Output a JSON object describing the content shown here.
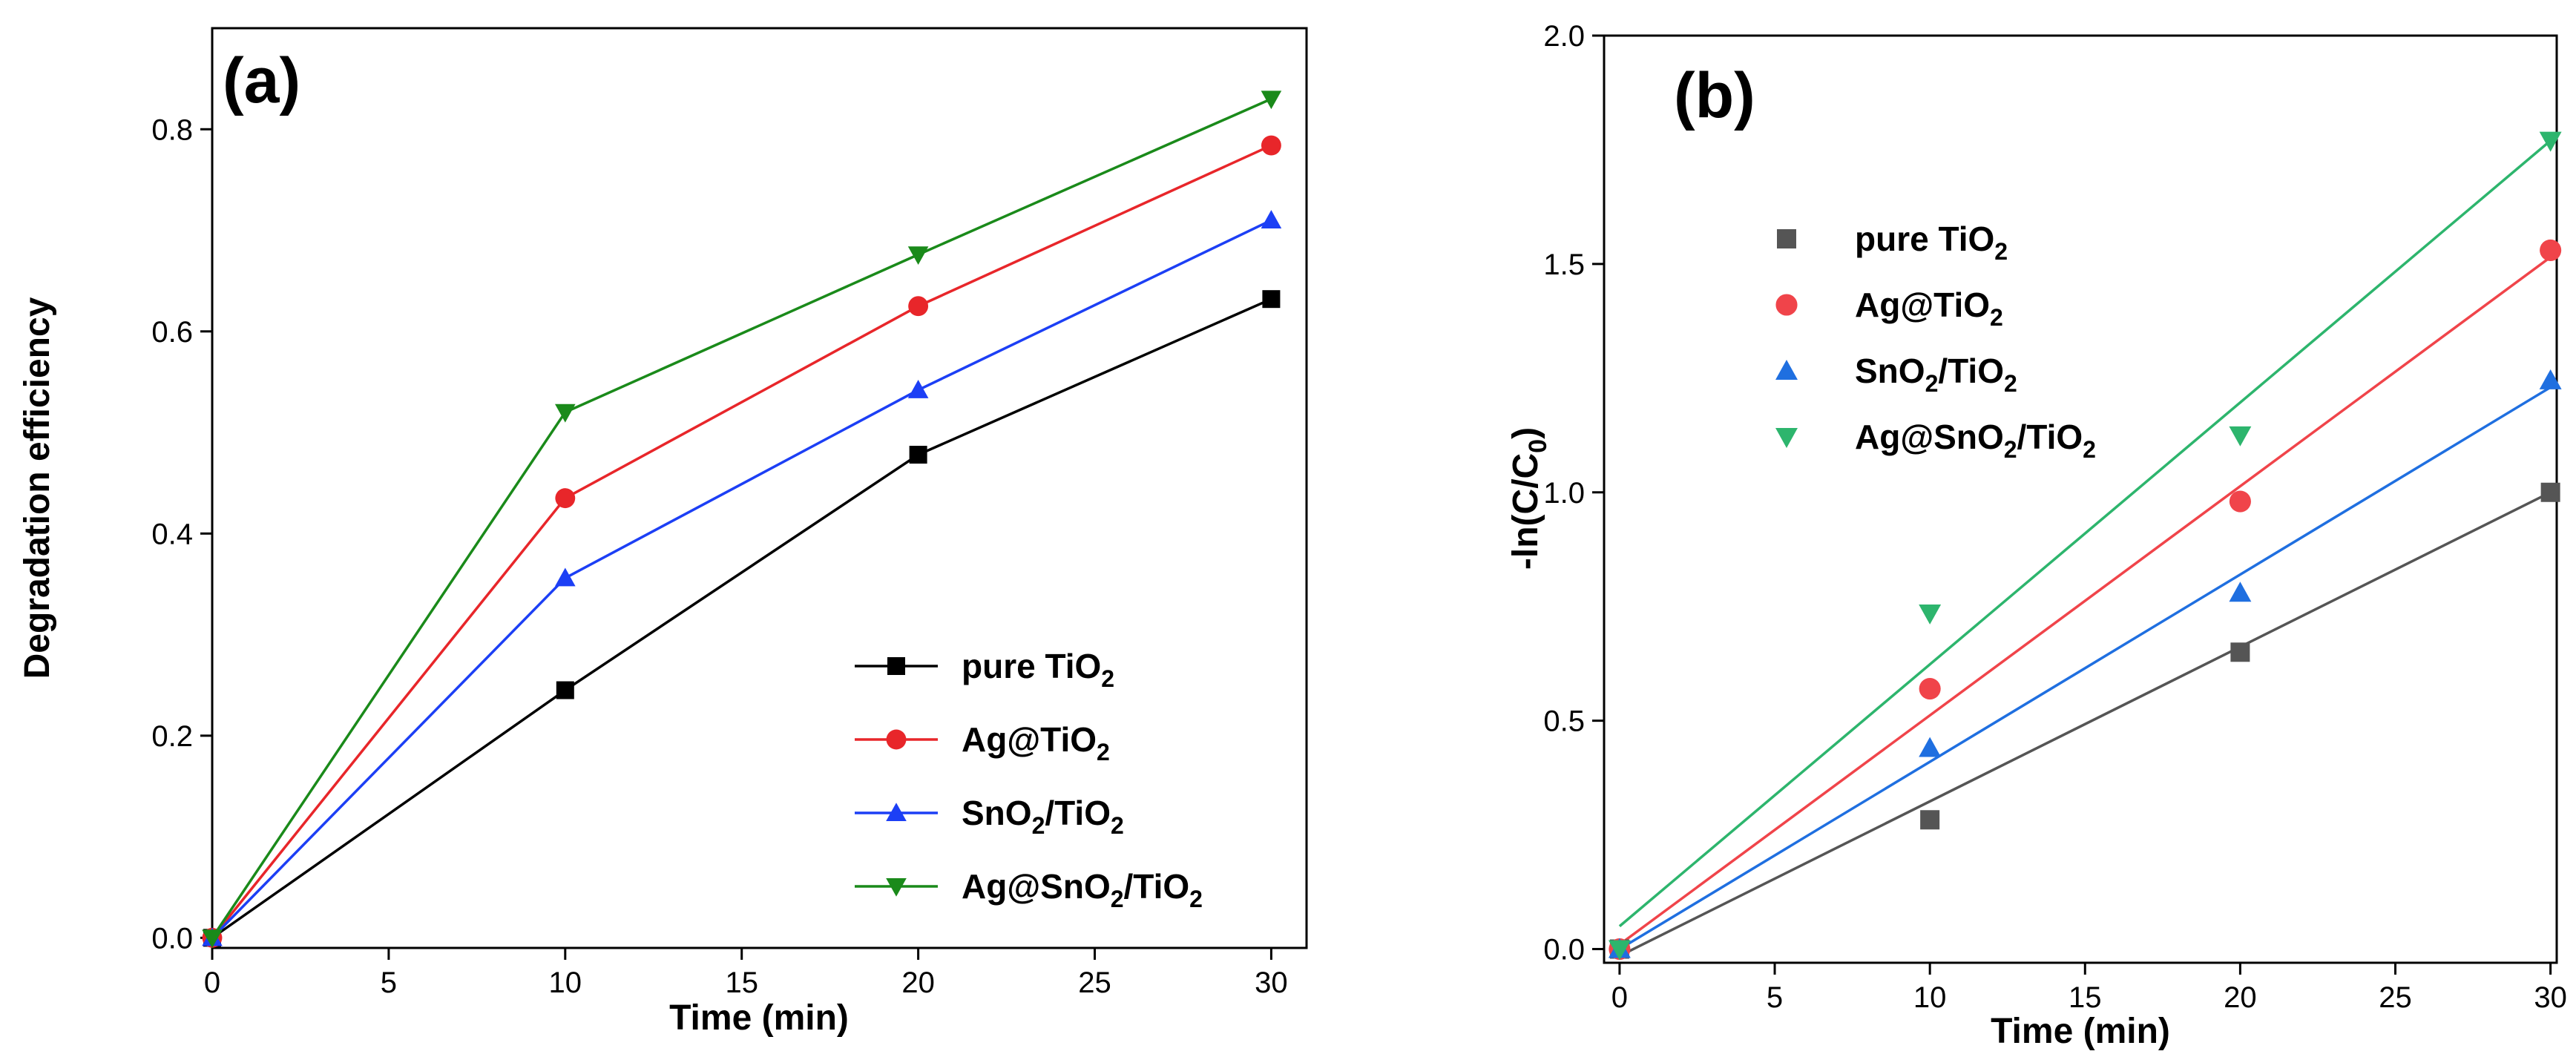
{
  "chart_data": [
    {
      "panel": "(a)",
      "type": "line",
      "xlabel": "Time (min)",
      "ylabel": "Degradation efficiency",
      "xlim": [
        0,
        31
      ],
      "ylim": [
        -0.01,
        0.9
      ],
      "xticks": [
        "0",
        "5",
        "10",
        "15",
        "20",
        "25",
        "30"
      ],
      "yticks": [
        "0.0",
        "0.2",
        "0.4",
        "0.6",
        "0.8"
      ],
      "x": [
        0,
        10,
        20,
        30
      ],
      "legend_position": "bottom-right",
      "series": [
        {
          "name": "pure TiO2",
          "label_main": "pure TiO",
          "label_sub": "2",
          "label_rest": "",
          "label_sub2": "",
          "color": "#000000",
          "marker": "square",
          "values": [
            0.0,
            0.245,
            0.478,
            0.632
          ]
        },
        {
          "name": "Ag@TiO2",
          "label_main": "Ag@TiO",
          "label_sub": "2",
          "label_rest": "",
          "label_sub2": "",
          "color": "#e8262a",
          "marker": "circle",
          "values": [
            0.0,
            0.435,
            0.625,
            0.784
          ]
        },
        {
          "name": "SnO2/TiO2",
          "label_main": "SnO",
          "label_sub": "2",
          "label_rest": "/TiO",
          "label_sub2": "2",
          "color": "#1c3ff5",
          "marker": "triangle-up",
          "values": [
            0.0,
            0.356,
            0.542,
            0.71
          ]
        },
        {
          "name": "Ag@SnO2/TiO2",
          "label_main": "Ag@SnO",
          "label_sub": "2",
          "label_rest": "/TiO",
          "label_sub2": "2",
          "color": "#1a8a1a",
          "marker": "triangle-down",
          "values": [
            0.0,
            0.52,
            0.676,
            0.83
          ]
        }
      ]
    },
    {
      "panel": "(b)",
      "type": "scatter",
      "xlabel": "Time (min)",
      "ylabel": "-ln(C/C0)",
      "ylabel_main": "-ln(C/C",
      "ylabel_sub": "0",
      "ylabel_end": ")",
      "xlim": [
        -0.5,
        30.2
      ],
      "ylim": [
        -0.03,
        2.0
      ],
      "xticks": [
        "0",
        "5",
        "10",
        "15",
        "20",
        "25",
        "30"
      ],
      "yticks": [
        "0.0",
        "0.5",
        "1.0",
        "1.5",
        "2.0"
      ],
      "x": [
        0,
        10,
        20,
        30
      ],
      "legend_position": "top-left",
      "series": [
        {
          "name": "pure TiO2",
          "label_main": "pure TiO",
          "label_sub": "2",
          "label_rest": "",
          "label_sub2": "",
          "color": "#555555",
          "marker": "square",
          "values": [
            0.0,
            0.283,
            0.65,
            1.0
          ],
          "fit": [
            -0.015,
            1.0
          ]
        },
        {
          "name": "Ag@TiO2",
          "label_main": "Ag@TiO",
          "label_sub": "2",
          "label_rest": "",
          "label_sub2": "",
          "color": "#f0444a",
          "marker": "circle",
          "values": [
            0.0,
            0.57,
            0.98,
            1.53
          ],
          "fit": [
            0.01,
            1.515
          ]
        },
        {
          "name": "SnO2/TiO2",
          "label_main": "SnO",
          "label_sub": "2",
          "label_rest": "/TiO",
          "label_sub2": "2",
          "color": "#1f6fe0",
          "marker": "triangle-up",
          "values": [
            0.0,
            0.44,
            0.78,
            1.245
          ],
          "fit": [
            0.0,
            1.23
          ]
        },
        {
          "name": "Ag@SnO2/TiO2",
          "label_main": "Ag@SnO",
          "label_sub": "2",
          "label_rest": "/TiO",
          "label_sub2": "2",
          "color": "#2db56d",
          "marker": "triangle-down",
          "values": [
            0.0,
            0.735,
            1.125,
            1.77
          ],
          "fit": [
            0.05,
            1.77
          ]
        }
      ]
    }
  ]
}
